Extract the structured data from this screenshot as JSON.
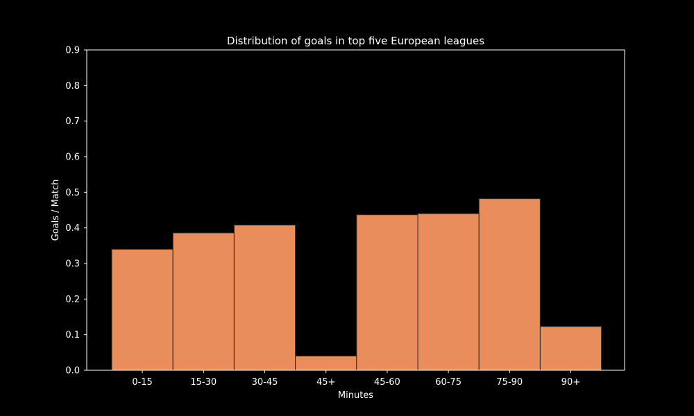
{
  "chart_data": {
    "type": "bar",
    "title": "Distribution of goals in top five European leagues",
    "xlabel": "Minutes",
    "ylabel": "Goals / Match",
    "categories": [
      "0-15",
      "15-30",
      "30-45",
      "45+",
      "45-60",
      "60-75",
      "75-90",
      "90+"
    ],
    "values": [
      0.34,
      0.386,
      0.408,
      0.04,
      0.437,
      0.44,
      0.482,
      0.123
    ],
    "ylim": [
      0,
      0.9
    ],
    "yticks": [
      "0.0",
      "0.1",
      "0.2",
      "0.3",
      "0.4",
      "0.5",
      "0.6",
      "0.7",
      "0.8",
      "0.9"
    ],
    "grid": false,
    "colors": {
      "background": "#000000",
      "bar_fill": "#e98d5b",
      "bar_edge": "#2a2a2a",
      "axes": "#ffffff",
      "text": "#ffffff"
    }
  }
}
